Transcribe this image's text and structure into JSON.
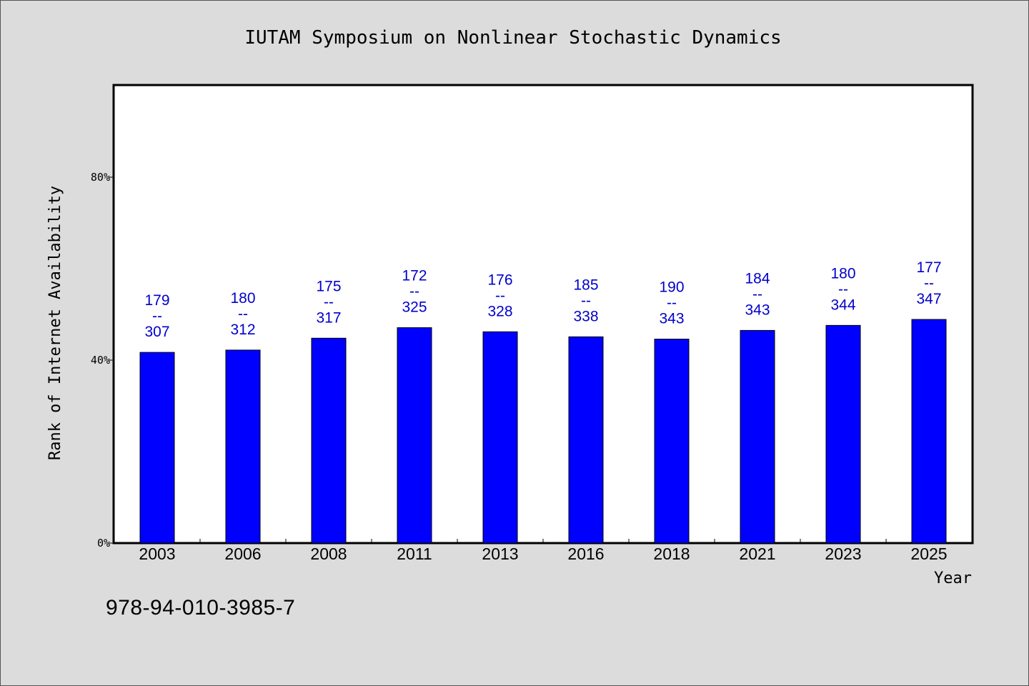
{
  "chart_data": {
    "type": "bar",
    "title": "IUTAM Symposium on Nonlinear Stochastic Dynamics",
    "xlabel": "Year",
    "ylabel": "Rank of Internet Availability",
    "ylim": [
      0,
      100
    ],
    "yticks": [
      {
        "value": 0,
        "label": "0%"
      },
      {
        "value": 40,
        "label": "40%"
      },
      {
        "value": 80,
        "label": "80%"
      }
    ],
    "grid": false,
    "bar_color": "#0000ff",
    "label_color": "#0000cc",
    "categories": [
      "2003",
      "2006",
      "2008",
      "2011",
      "2013",
      "2016",
      "2018",
      "2021",
      "2023",
      "2025"
    ],
    "values": [
      41.7,
      42.2,
      44.8,
      47.1,
      46.2,
      45.1,
      44.6,
      46.5,
      47.6,
      48.9
    ],
    "labels": [
      {
        "top": "179",
        "sep": "--",
        "bottom": "307"
      },
      {
        "top": "180",
        "sep": "--",
        "bottom": "312"
      },
      {
        "top": "175",
        "sep": "--",
        "bottom": "317"
      },
      {
        "top": "172",
        "sep": "--",
        "bottom": "325"
      },
      {
        "top": "176",
        "sep": "--",
        "bottom": "328"
      },
      {
        "top": "185",
        "sep": "--",
        "bottom": "338"
      },
      {
        "top": "190",
        "sep": "--",
        "bottom": "343"
      },
      {
        "top": "184",
        "sep": "--",
        "bottom": "343"
      },
      {
        "top": "180",
        "sep": "--",
        "bottom": "344"
      },
      {
        "top": "177",
        "sep": "--",
        "bottom": "347"
      }
    ]
  },
  "footer": {
    "code": "978-94-010-3985-7"
  }
}
